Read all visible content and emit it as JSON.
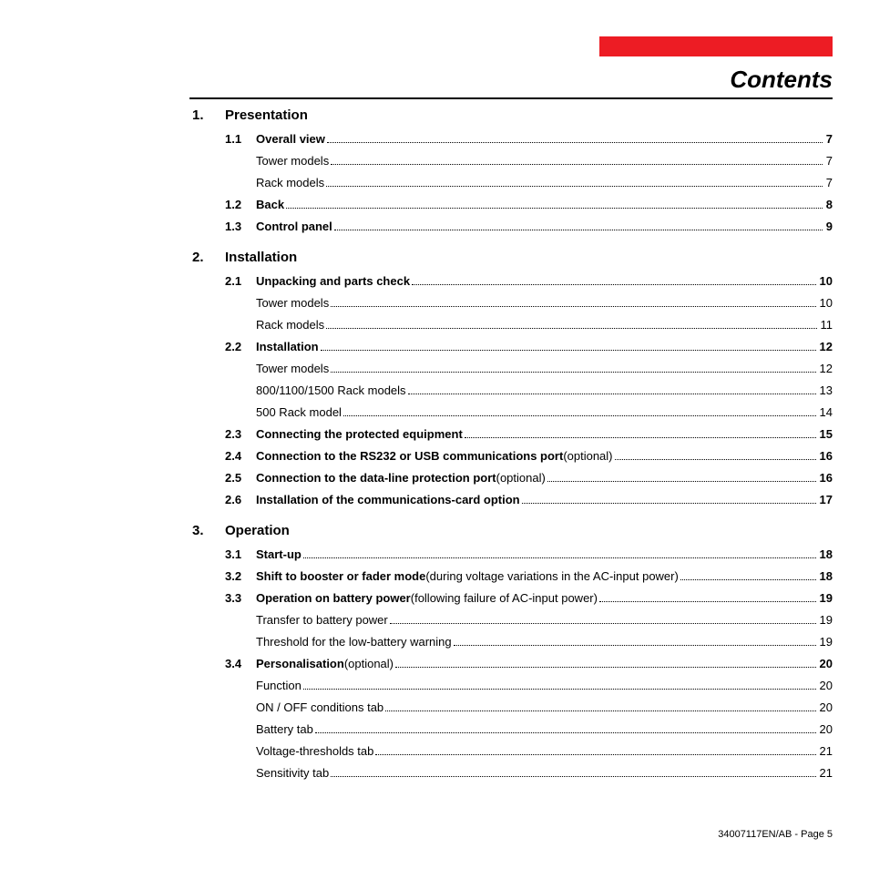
{
  "header": {
    "title": "Contents",
    "accent_color": "#ed1c24"
  },
  "chapters": [
    {
      "num": "1.",
      "title": "Presentation",
      "sections": [
        {
          "num": "1.1",
          "text": "Overall view",
          "bold": true,
          "page": "7",
          "page_bold": true
        },
        {
          "sub": true,
          "text": "Tower models",
          "page": "7"
        },
        {
          "sub": true,
          "text": "Rack models",
          "page": "7"
        },
        {
          "num": "1.2",
          "text": "Back",
          "bold": true,
          "page": "8",
          "page_bold": true
        },
        {
          "num": "1.3",
          "text": "Control panel",
          "bold": true,
          "page": "9",
          "page_bold": true
        }
      ]
    },
    {
      "num": "2.",
      "title": "Installation",
      "sections": [
        {
          "num": "2.1",
          "text": "Unpacking and parts check",
          "bold": true,
          "page": "10",
          "page_bold": true
        },
        {
          "sub": true,
          "text": "Tower models",
          "page": "10"
        },
        {
          "sub": true,
          "text": "Rack models",
          "page": "11"
        },
        {
          "num": "2.2",
          "text": "Installation",
          "bold": true,
          "page": "12",
          "page_bold": true
        },
        {
          "sub": true,
          "text": "Tower models",
          "page": "12"
        },
        {
          "sub": true,
          "text": "800/1100/1500 Rack models",
          "page": "13"
        },
        {
          "sub": true,
          "text": "500 Rack model",
          "page": "14"
        },
        {
          "num": "2.3",
          "text": "Connecting the protected equipment",
          "bold": true,
          "page": "15",
          "page_bold": true
        },
        {
          "num": "2.4",
          "text": "Connection to the RS232 or USB communications port",
          "bold": true,
          "suffix": " (optional)",
          "page": "16",
          "page_bold": true
        },
        {
          "num": "2.5",
          "text": "Connection to the data-line protection port",
          "bold": true,
          "suffix": " (optional)",
          "page": "16",
          "page_bold": true
        },
        {
          "num": "2.6",
          "text": "Installation of the communications-card option",
          "bold": true,
          "page": "17",
          "page_bold": true
        }
      ]
    },
    {
      "num": "3.",
      "title": "Operation",
      "sections": [
        {
          "num": "3.1",
          "text": "Start-up",
          "bold": true,
          "page": "18",
          "page_bold": true
        },
        {
          "num": "3.2",
          "text": "Shift to booster or fader mode",
          "bold": true,
          "suffix": " (during voltage variations in the AC-input power)",
          "page": "18",
          "page_bold": true
        },
        {
          "num": "3.3",
          "text": "Operation on battery power",
          "bold": true,
          "suffix": " (following failure of AC-input power)",
          "page": "19",
          "page_bold": true
        },
        {
          "sub": true,
          "text": "Transfer to battery power",
          "page": "19"
        },
        {
          "sub": true,
          "text": "Threshold for the low-battery warning",
          "page": "19"
        },
        {
          "num": "3.4",
          "text": "Personalisation",
          "bold": true,
          "suffix": " (optional)",
          "page": "20",
          "page_bold": true
        },
        {
          "sub": true,
          "text": "Function",
          "page": "20"
        },
        {
          "sub": true,
          "text": "ON / OFF conditions tab",
          "page": "20"
        },
        {
          "sub": true,
          "text": "Battery tab",
          "page": "20"
        },
        {
          "sub": true,
          "text": "Voltage-thresholds tab",
          "page": "21"
        },
        {
          "sub": true,
          "text": "Sensitivity tab",
          "page": "21"
        }
      ]
    }
  ],
  "footer": {
    "doc_code": "34007117EN/AB",
    "page_label": " - Page 5"
  }
}
